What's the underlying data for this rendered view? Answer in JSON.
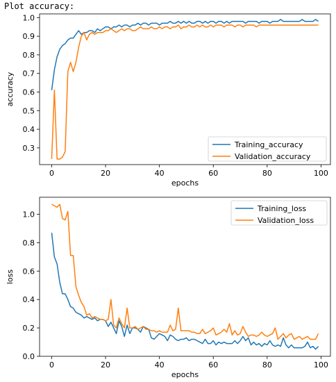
{
  "header": {
    "cell_label": "Plot accuracy:"
  },
  "colors": {
    "training": "#1f77b4",
    "validation": "#ff7f0e"
  },
  "chart_data": [
    {
      "type": "line",
      "xlabel": "epochs",
      "ylabel": "accuracy",
      "xlim": [
        -4.5,
        103.5
      ],
      "ylim": [
        0.21,
        1.02
      ],
      "xticks": [
        0,
        20,
        40,
        60,
        80,
        100
      ],
      "yticks": [
        0.3,
        0.4,
        0.5,
        0.6,
        0.7,
        0.8,
        0.9,
        1.0
      ],
      "ytick_labels": [
        "0.3",
        "0.4",
        "0.5",
        "0.6",
        "0.7",
        "0.8",
        "0.9",
        "1.0"
      ],
      "legend_position": "lower right",
      "grid": false,
      "x": [
        0,
        1,
        2,
        3,
        4,
        5,
        6,
        7,
        8,
        9,
        10,
        11,
        12,
        13,
        14,
        15,
        16,
        17,
        18,
        19,
        20,
        21,
        22,
        23,
        24,
        25,
        26,
        27,
        28,
        29,
        30,
        31,
        32,
        33,
        34,
        35,
        36,
        37,
        38,
        39,
        40,
        41,
        42,
        43,
        44,
        45,
        46,
        47,
        48,
        49,
        50,
        51,
        52,
        53,
        54,
        55,
        56,
        57,
        58,
        59,
        60,
        61,
        62,
        63,
        64,
        65,
        66,
        67,
        68,
        69,
        70,
        71,
        72,
        73,
        74,
        75,
        76,
        77,
        78,
        79,
        80,
        81,
        82,
        83,
        84,
        85,
        86,
        87,
        88,
        89,
        90,
        91,
        92,
        93,
        94,
        95,
        96,
        97,
        98,
        99
      ],
      "series": [
        {
          "name": "Training_accuracy",
          "values": [
            0.61,
            0.72,
            0.79,
            0.83,
            0.85,
            0.86,
            0.88,
            0.89,
            0.89,
            0.91,
            0.93,
            0.91,
            0.92,
            0.92,
            0.93,
            0.93,
            0.92,
            0.94,
            0.93,
            0.94,
            0.95,
            0.95,
            0.94,
            0.95,
            0.95,
            0.96,
            0.95,
            0.96,
            0.96,
            0.95,
            0.96,
            0.96,
            0.97,
            0.96,
            0.97,
            0.97,
            0.96,
            0.97,
            0.97,
            0.97,
            0.96,
            0.97,
            0.97,
            0.97,
            0.98,
            0.97,
            0.97,
            0.98,
            0.97,
            0.98,
            0.97,
            0.98,
            0.97,
            0.97,
            0.98,
            0.98,
            0.97,
            0.98,
            0.97,
            0.98,
            0.98,
            0.97,
            0.98,
            0.98,
            0.97,
            0.98,
            0.97,
            0.98,
            0.98,
            0.98,
            0.98,
            0.98,
            0.97,
            0.98,
            0.98,
            0.98,
            0.98,
            0.97,
            0.98,
            0.98,
            0.98,
            0.97,
            0.98,
            0.98,
            0.98,
            0.99,
            0.98,
            0.98,
            0.98,
            0.98,
            0.98,
            0.98,
            0.98,
            0.99,
            0.98,
            0.98,
            0.98,
            0.98,
            0.99,
            0.98
          ]
        },
        {
          "name": "Validation_accuracy",
          "values": [
            0.24,
            0.61,
            0.24,
            0.24,
            0.25,
            0.28,
            0.71,
            0.76,
            0.71,
            0.76,
            0.84,
            0.9,
            0.92,
            0.88,
            0.91,
            0.92,
            0.91,
            0.92,
            0.92,
            0.92,
            0.93,
            0.93,
            0.94,
            0.93,
            0.92,
            0.93,
            0.94,
            0.93,
            0.94,
            0.94,
            0.93,
            0.93,
            0.94,
            0.95,
            0.94,
            0.94,
            0.94,
            0.95,
            0.94,
            0.94,
            0.95,
            0.94,
            0.95,
            0.95,
            0.94,
            0.95,
            0.95,
            0.96,
            0.94,
            0.95,
            0.95,
            0.96,
            0.95,
            0.95,
            0.96,
            0.95,
            0.96,
            0.95,
            0.95,
            0.96,
            0.95,
            0.96,
            0.96,
            0.96,
            0.95,
            0.96,
            0.96,
            0.96,
            0.95,
            0.96,
            0.96,
            0.95,
            0.96,
            0.96,
            0.96,
            0.96,
            0.95,
            0.96,
            0.96,
            0.96,
            0.96,
            0.96,
            0.96,
            0.96,
            0.96,
            0.96,
            0.96,
            0.96,
            0.96,
            0.96,
            0.96,
            0.96,
            0.96,
            0.96,
            0.96,
            0.96,
            0.96,
            0.96,
            0.96,
            0.96
          ]
        }
      ]
    },
    {
      "type": "line",
      "xlabel": "epochs",
      "ylabel": "loss",
      "xlim": [
        -4.5,
        103.5
      ],
      "ylim": [
        0.0,
        1.12
      ],
      "xticks": [
        0,
        20,
        40,
        60,
        80,
        100
      ],
      "yticks": [
        0.0,
        0.2,
        0.4,
        0.6,
        0.8,
        1.0
      ],
      "ytick_labels": [
        "0.0",
        "0.2",
        "0.4",
        "0.6",
        "0.8",
        "1.0"
      ],
      "legend_position": "upper right",
      "grid": false,
      "x": [
        0,
        1,
        2,
        3,
        4,
        5,
        6,
        7,
        8,
        9,
        10,
        11,
        12,
        13,
        14,
        15,
        16,
        17,
        18,
        19,
        20,
        21,
        22,
        23,
        24,
        25,
        26,
        27,
        28,
        29,
        30,
        31,
        32,
        33,
        34,
        35,
        36,
        37,
        38,
        39,
        40,
        41,
        42,
        43,
        44,
        45,
        46,
        47,
        48,
        49,
        50,
        51,
        52,
        53,
        54,
        55,
        56,
        57,
        58,
        59,
        60,
        61,
        62,
        63,
        64,
        65,
        66,
        67,
        68,
        69,
        70,
        71,
        72,
        73,
        74,
        75,
        76,
        77,
        78,
        79,
        80,
        81,
        82,
        83,
        84,
        85,
        86,
        87,
        88,
        89,
        90,
        91,
        92,
        93,
        94,
        95,
        96,
        97,
        98,
        99
      ],
      "series": [
        {
          "name": "Training_loss",
          "values": [
            0.87,
            0.7,
            0.65,
            0.52,
            0.44,
            0.44,
            0.4,
            0.35,
            0.34,
            0.31,
            0.3,
            0.29,
            0.27,
            0.28,
            0.27,
            0.26,
            0.27,
            0.25,
            0.26,
            0.26,
            0.25,
            0.21,
            0.24,
            0.2,
            0.16,
            0.25,
            0.21,
            0.14,
            0.22,
            0.16,
            0.2,
            0.2,
            0.19,
            0.17,
            0.21,
            0.2,
            0.19,
            0.13,
            0.12,
            0.14,
            0.16,
            0.15,
            0.14,
            0.11,
            0.15,
            0.14,
            0.12,
            0.11,
            0.12,
            0.12,
            0.13,
            0.11,
            0.12,
            0.12,
            0.11,
            0.1,
            0.09,
            0.12,
            0.09,
            0.09,
            0.11,
            0.08,
            0.1,
            0.09,
            0.1,
            0.09,
            0.09,
            0.09,
            0.11,
            0.09,
            0.11,
            0.14,
            0.11,
            0.13,
            0.08,
            0.1,
            0.08,
            0.09,
            0.07,
            0.09,
            0.08,
            0.11,
            0.08,
            0.07,
            0.08,
            0.07,
            0.13,
            0.08,
            0.06,
            0.08,
            0.06,
            0.06,
            0.06,
            0.06,
            0.07,
            0.1,
            0.06,
            0.07,
            0.05,
            0.07
          ]
        },
        {
          "name": "Validation_loss",
          "values": [
            1.07,
            1.06,
            1.05,
            1.07,
            0.97,
            0.96,
            1.02,
            0.71,
            0.71,
            0.49,
            0.43,
            0.38,
            0.35,
            0.29,
            0.3,
            0.27,
            0.28,
            0.27,
            0.26,
            0.26,
            0.25,
            0.26,
            0.4,
            0.22,
            0.2,
            0.27,
            0.23,
            0.2,
            0.34,
            0.2,
            0.2,
            0.21,
            0.19,
            0.2,
            0.21,
            0.19,
            0.19,
            0.18,
            0.18,
            0.17,
            0.18,
            0.17,
            0.17,
            0.17,
            0.22,
            0.18,
            0.19,
            0.34,
            0.18,
            0.18,
            0.18,
            0.18,
            0.17,
            0.17,
            0.16,
            0.16,
            0.19,
            0.16,
            0.17,
            0.18,
            0.2,
            0.15,
            0.16,
            0.17,
            0.19,
            0.17,
            0.23,
            0.15,
            0.18,
            0.15,
            0.16,
            0.21,
            0.17,
            0.14,
            0.15,
            0.15,
            0.14,
            0.15,
            0.17,
            0.15,
            0.14,
            0.15,
            0.16,
            0.2,
            0.12,
            0.14,
            0.16,
            0.13,
            0.15,
            0.16,
            0.12,
            0.13,
            0.14,
            0.12,
            0.13,
            0.14,
            0.12,
            0.12,
            0.12,
            0.16
          ]
        }
      ]
    }
  ]
}
